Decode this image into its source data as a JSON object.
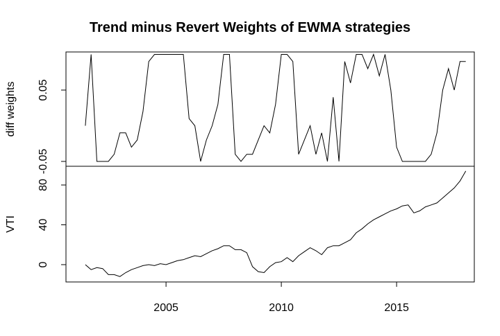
{
  "title": "Trend minus Revert Weights of EWMA strategies",
  "chart_data": [
    {
      "type": "line",
      "ylabel": "diff weights",
      "color": "#000000",
      "x": [
        2001.5,
        2001.75,
        2002,
        2002.25,
        2002.5,
        2002.75,
        2003,
        2003.25,
        2003.5,
        2003.75,
        2004,
        2004.25,
        2004.5,
        2004.75,
        2005,
        2005.25,
        2005.5,
        2005.75,
        2006,
        2006.25,
        2006.5,
        2006.75,
        2007,
        2007.25,
        2007.5,
        2007.75,
        2008,
        2008.25,
        2008.5,
        2008.75,
        2009,
        2009.25,
        2009.5,
        2009.75,
        2010,
        2010.25,
        2010.5,
        2010.75,
        2011,
        2011.25,
        2011.5,
        2011.75,
        2012,
        2012.25,
        2012.5,
        2012.75,
        2013,
        2013.25,
        2013.5,
        2013.75,
        2014,
        2014.25,
        2014.5,
        2014.75,
        2015,
        2015.25,
        2015.5,
        2015.75,
        2016,
        2016.25,
        2016.5,
        2016.75,
        2017,
        2017.25,
        2017.5,
        2017.75,
        2018
      ],
      "values": [
        0,
        0.1,
        -0.05,
        -0.05,
        -0.05,
        -0.04,
        -0.01,
        -0.01,
        -0.03,
        -0.02,
        0.02,
        0.09,
        0.1,
        0.1,
        0.1,
        0.1,
        0.1,
        0.1,
        0.01,
        0,
        -0.05,
        -0.02,
        0,
        0.03,
        0.1,
        0.1,
        -0.04,
        -0.05,
        -0.04,
        -0.04,
        -0.02,
        0,
        -0.01,
        0.03,
        0.1,
        0.1,
        0.09,
        -0.04,
        -0.02,
        0,
        -0.04,
        -0.01,
        -0.05,
        0.04,
        -0.05,
        0.09,
        0.06,
        0.1,
        0.1,
        0.08,
        0.1,
        0.07,
        0.1,
        0.05,
        -0.03,
        -0.05,
        -0.05,
        -0.05,
        -0.05,
        -0.05,
        -0.04,
        -0.01,
        0.05,
        0.08,
        0.05,
        0.09,
        0.09
      ],
      "xlim": [
        2000.66,
        2018.37
      ],
      "ylim": [
        -0.0568,
        0.1034
      ],
      "yticks": [
        -0.05,
        0.05
      ]
    },
    {
      "type": "line",
      "ylabel": "VTI",
      "color": "#000000",
      "x": [
        2001.5,
        2001.75,
        2002,
        2002.25,
        2002.5,
        2002.75,
        2003,
        2003.25,
        2003.5,
        2003.75,
        2004,
        2004.25,
        2004.5,
        2004.75,
        2005,
        2005.25,
        2005.5,
        2005.75,
        2006,
        2006.25,
        2006.5,
        2006.75,
        2007,
        2007.25,
        2007.5,
        2007.75,
        2008,
        2008.25,
        2008.5,
        2008.75,
        2009,
        2009.25,
        2009.5,
        2009.75,
        2010,
        2010.25,
        2010.5,
        2010.75,
        2011,
        2011.25,
        2011.5,
        2011.75,
        2012,
        2012.25,
        2012.5,
        2012.75,
        2013,
        2013.25,
        2013.5,
        2013.75,
        2014,
        2014.25,
        2014.5,
        2014.75,
        2015,
        2015.25,
        2015.5,
        2015.75,
        2016,
        2016.25,
        2016.5,
        2016.75,
        2017,
        2017.25,
        2017.5,
        2017.75,
        2018
      ],
      "values": [
        0,
        -5,
        -3,
        -4,
        -10,
        -10,
        -12,
        -8,
        -5,
        -3,
        -1,
        0,
        -1,
        1,
        0,
        2,
        4,
        5,
        7,
        9,
        8,
        11,
        14,
        16,
        19,
        19,
        15,
        15,
        12,
        -2,
        -7,
        -8,
        -2,
        2,
        3,
        7,
        3,
        9,
        13,
        17,
        14,
        10,
        17,
        19,
        19,
        22,
        25,
        32,
        36,
        41,
        45,
        48,
        51,
        54,
        56,
        59,
        60,
        52,
        54,
        58,
        60,
        62,
        67,
        72,
        77,
        84,
        94
      ],
      "xlim": [
        2000.66,
        2018.37
      ],
      "ylim": [
        -17.4,
        98.8
      ],
      "yticks": [
        0,
        40,
        80
      ],
      "xticks": [
        2005,
        2010,
        2015
      ]
    }
  ]
}
